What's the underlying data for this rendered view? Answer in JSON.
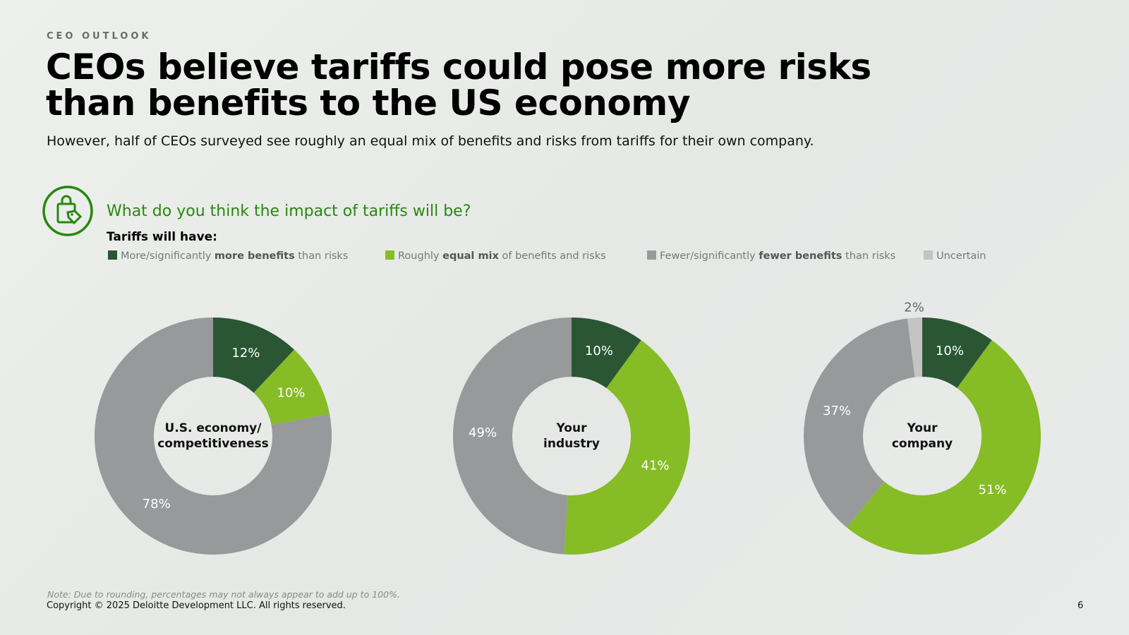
{
  "header": {
    "eyebrow": "CEO OUTLOOK",
    "title": "CEOs believe tariffs could pose more risks than benefits to the US economy",
    "subtitle": "However, half of CEOs surveyed see roughly an equal mix of benefits and risks from tariffs for their own company.",
    "question": "What do you think the impact of tariffs will be?",
    "legend_title": "Tariffs will have:"
  },
  "legend": [
    {
      "color": "#2a5634",
      "parts": [
        "More/significantly ",
        "more benefits",
        " than risks"
      ]
    },
    {
      "color": "#86bc25",
      "parts": [
        "Roughly ",
        "equal mix",
        " of benefits and risks"
      ]
    },
    {
      "color": "#97999b",
      "parts": [
        "Fewer/significantly ",
        "fewer benefits",
        " than risks"
      ]
    },
    {
      "color": "#c4c4c4",
      "parts": [
        "Uncertain"
      ]
    }
  ],
  "chart_data": [
    {
      "type": "pie",
      "title": [
        "U.S. economy/",
        "competitiveness"
      ],
      "values": [
        12,
        10,
        78
      ],
      "value_labels": [
        "12%",
        "10%",
        "78%"
      ]
    },
    {
      "type": "pie",
      "title": [
        "Your",
        "industry"
      ],
      "values": [
        10,
        41,
        49
      ],
      "value_labels": [
        "10%",
        "41%",
        "49%"
      ]
    },
    {
      "type": "pie",
      "title": [
        "Your",
        "company"
      ],
      "values": [
        10,
        51,
        37,
        2
      ],
      "value_labels": [
        "10%",
        "51%",
        "37%",
        "2%"
      ]
    }
  ],
  "footer": {
    "note": "Note: Due to rounding, percentages may not always appear to add up to 100%.",
    "copyright": "Copyright © 2025 Deloitte Development LLC. All rights reserved.",
    "page": 6
  }
}
